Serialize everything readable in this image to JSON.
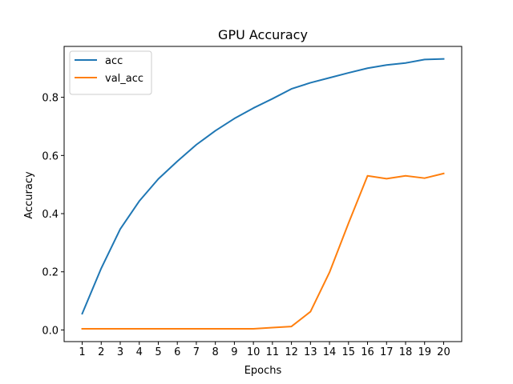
{
  "chart_data": {
    "type": "line",
    "title": "GPU Accuracy",
    "xlabel": "Epochs",
    "ylabel": "Accuracy",
    "x": [
      1,
      2,
      3,
      4,
      5,
      6,
      7,
      8,
      9,
      10,
      11,
      12,
      13,
      14,
      15,
      16,
      17,
      18,
      19,
      20
    ],
    "xticks": [
      1,
      2,
      3,
      4,
      5,
      6,
      7,
      8,
      9,
      10,
      11,
      12,
      13,
      14,
      15,
      16,
      17,
      18,
      19,
      20
    ],
    "xlim": [
      0.05,
      20.95
    ],
    "yticks": [
      "0.0",
      "0.2",
      "0.4",
      "0.6",
      "0.8"
    ],
    "ylim": [
      -0.04,
      0.975
    ],
    "grid": false,
    "legend": "upper left",
    "series": [
      {
        "name": "acc",
        "color": "#1f77b4",
        "values": [
          0.056,
          0.212,
          0.347,
          0.443,
          0.519,
          0.58,
          0.637,
          0.685,
          0.727,
          0.763,
          0.795,
          0.829,
          0.85,
          0.867,
          0.884,
          0.9,
          0.911,
          0.918,
          0.93,
          0.932
        ]
      },
      {
        "name": "val_acc",
        "color": "#ff7f0e",
        "values": [
          0.004,
          0.004,
          0.004,
          0.004,
          0.004,
          0.004,
          0.004,
          0.004,
          0.004,
          0.004,
          0.008,
          0.012,
          0.063,
          0.198,
          0.367,
          0.53,
          0.52,
          0.53,
          0.522,
          0.538
        ]
      }
    ]
  }
}
